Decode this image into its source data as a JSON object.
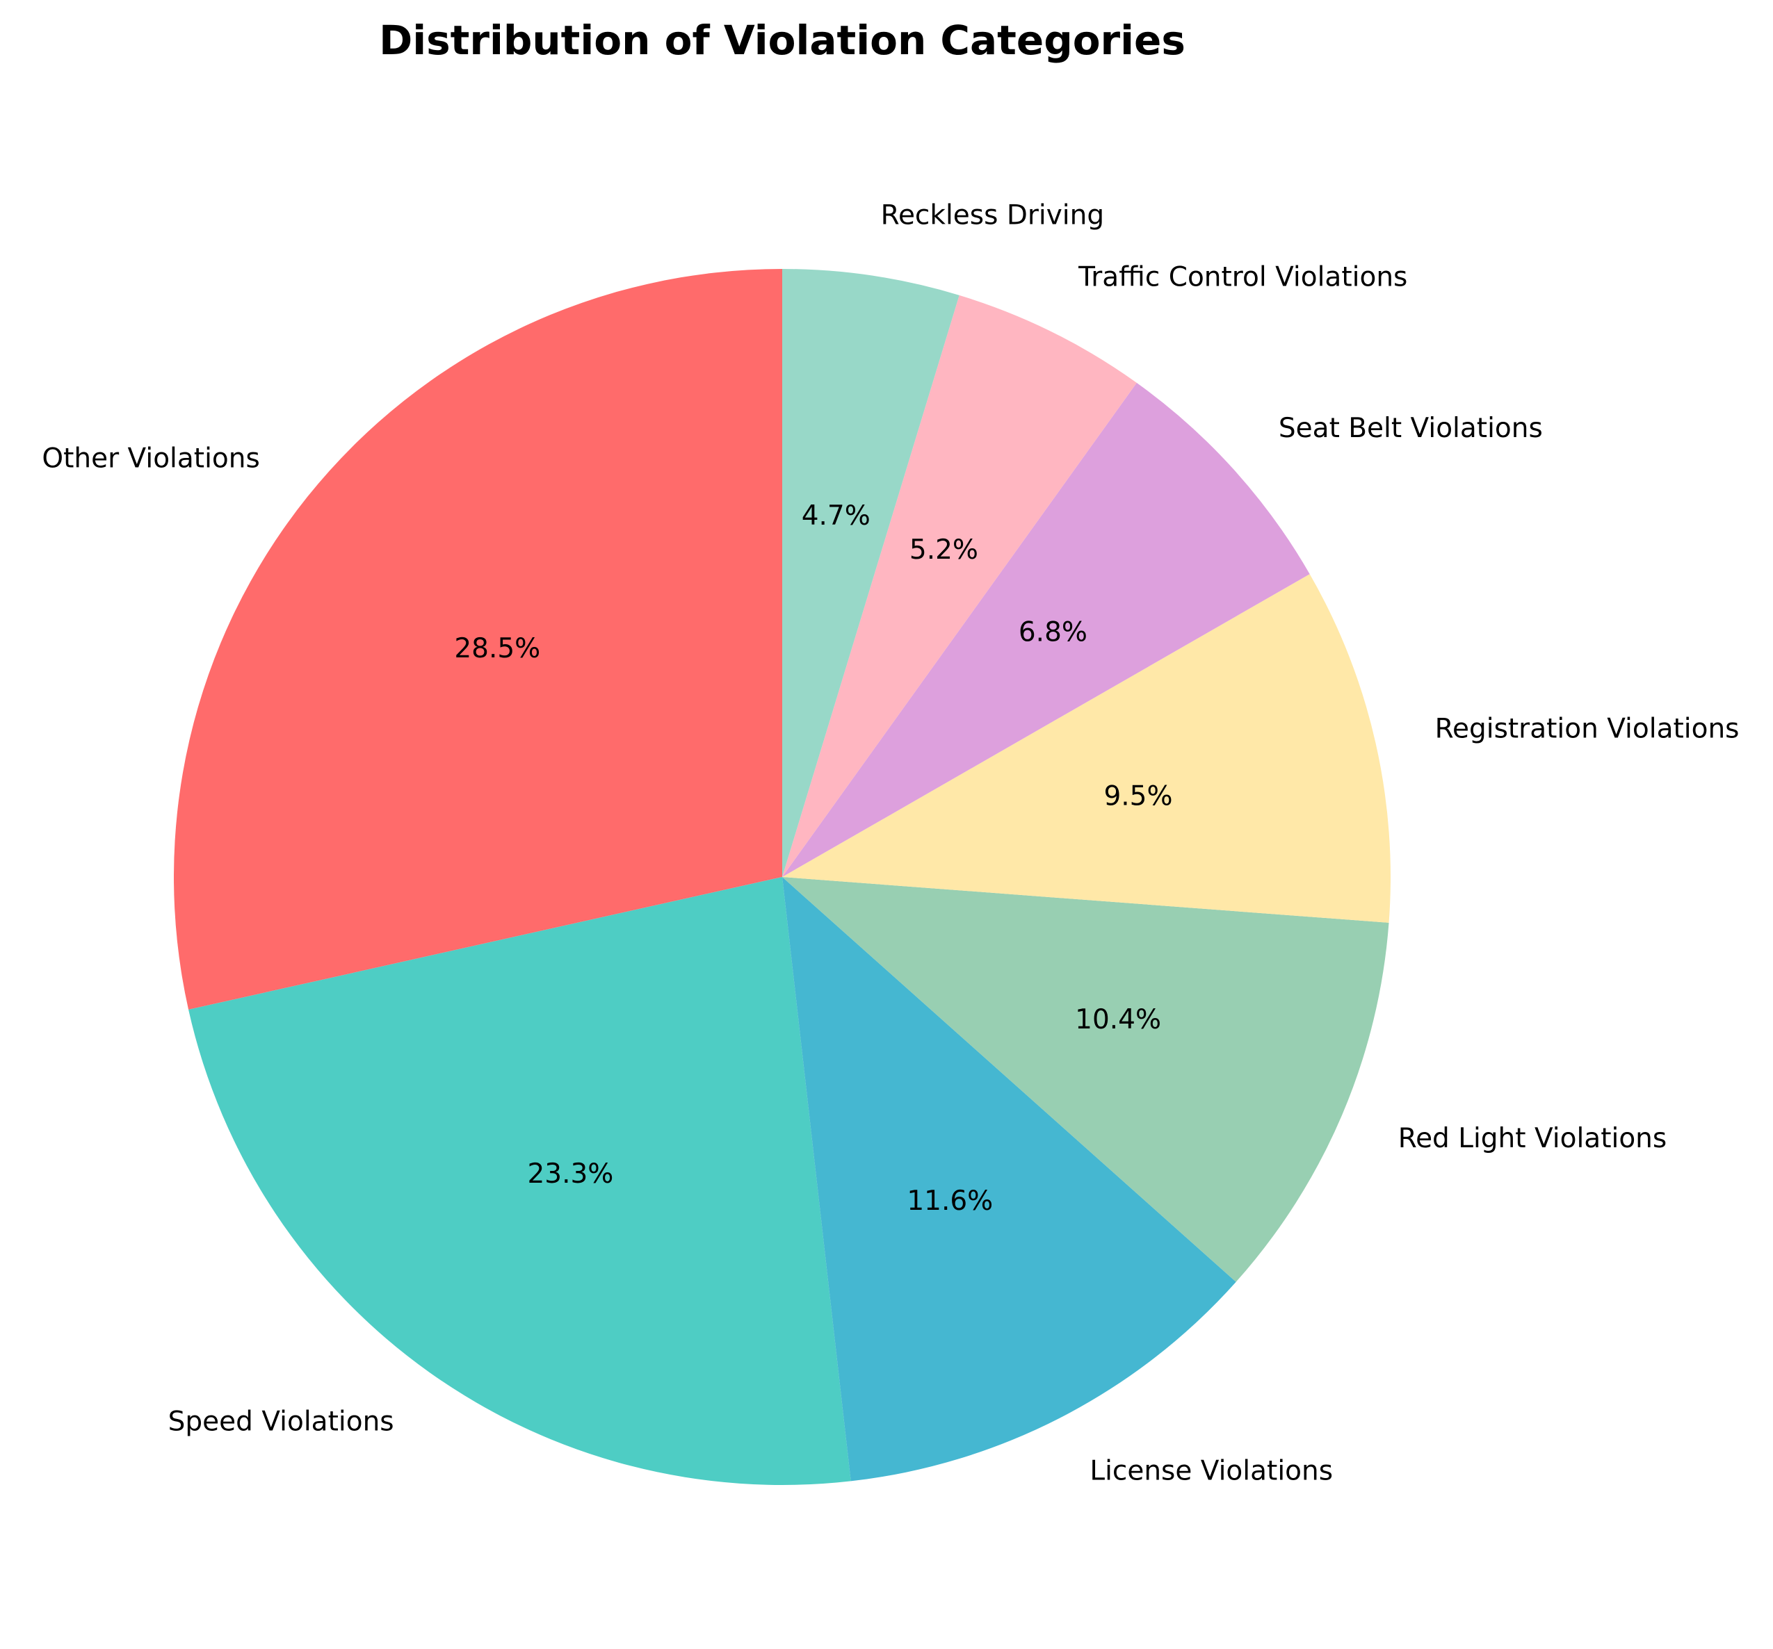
{
  "chart_data": {
    "type": "pie",
    "title": "Distribution of Violation Categories",
    "start_angle_deg": 90,
    "direction": "counterclockwise",
    "slices": [
      {
        "label": "Other Violations",
        "value": 28.5,
        "pct_label": "28.5%",
        "color": "#FF6B6B"
      },
      {
        "label": "Speed Violations",
        "value": 23.3,
        "pct_label": "23.3%",
        "color": "#4ECDC4"
      },
      {
        "label": "License Violations",
        "value": 11.6,
        "pct_label": "11.6%",
        "color": "#45B7D1"
      },
      {
        "label": "Red Light Violations",
        "value": 10.4,
        "pct_label": "10.4%",
        "color": "#98CFB2"
      },
      {
        "label": "Registration Violations",
        "value": 9.5,
        "pct_label": "9.5%",
        "color": "#FFE8A8"
      },
      {
        "label": "Seat Belt Violations",
        "value": 6.8,
        "pct_label": "6.8%",
        "color": "#DDA0DD"
      },
      {
        "label": "Traffic Control Violations",
        "value": 5.2,
        "pct_label": "5.2%",
        "color": "#FFB6C1"
      },
      {
        "label": "Reckless Driving",
        "value": 4.7,
        "pct_label": "4.7%",
        "color": "#98D8C8"
      }
    ]
  }
}
